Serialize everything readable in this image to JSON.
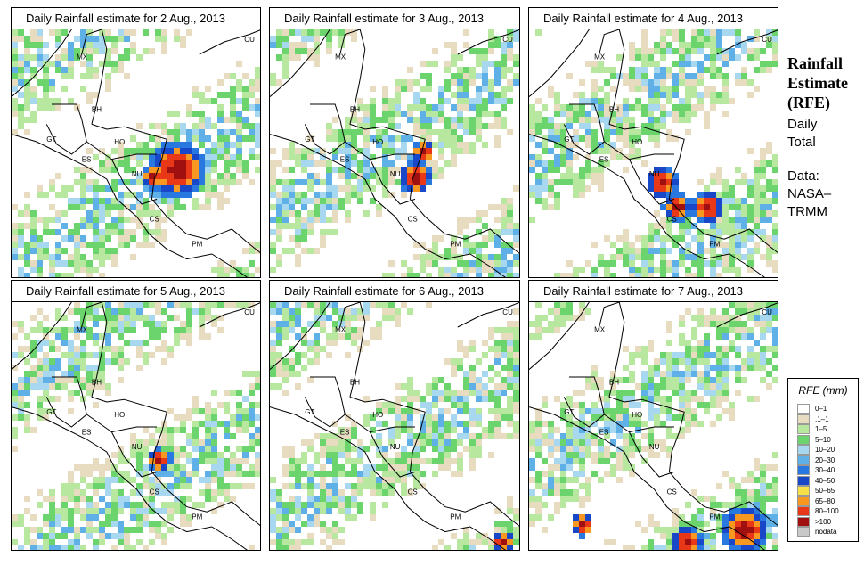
{
  "panels": [
    {
      "title": "Daily Rainfall estimate for  2 Aug., 2013",
      "heavy_spots": [
        [
          0.65,
          0.55,
          0.12
        ],
        [
          0.55,
          0.58,
          0.05
        ]
      ]
    },
    {
      "title": "Daily Rainfall estimate for  3 Aug., 2013",
      "heavy_spots": [
        [
          0.57,
          0.58,
          0.07
        ],
        [
          0.6,
          0.48,
          0.05
        ]
      ]
    },
    {
      "title": "Daily Rainfall estimate for  4 Aug., 2013",
      "heavy_spots": [
        [
          0.52,
          0.6,
          0.07
        ],
        [
          0.7,
          0.7,
          0.07
        ],
        [
          0.58,
          0.7,
          0.06
        ]
      ]
    },
    {
      "title": "Daily Rainfall estimate for  5 Aug., 2013",
      "heavy_spots": [
        [
          0.58,
          0.62,
          0.05
        ]
      ]
    },
    {
      "title": "Daily Rainfall estimate for  6 Aug., 2013",
      "heavy_spots": [
        [
          0.92,
          0.95,
          0.05
        ]
      ]
    },
    {
      "title": "Daily Rainfall estimate for  7 Aug., 2013",
      "heavy_spots": [
        [
          0.85,
          0.9,
          0.1
        ],
        [
          0.62,
          0.95,
          0.07
        ],
        [
          0.2,
          0.88,
          0.05
        ]
      ]
    }
  ],
  "country_labels": [
    "MX",
    "CU",
    "BH",
    "GT",
    "HO",
    "ES",
    "NU",
    "CS",
    "PM"
  ],
  "side": {
    "title_line1": "Rainfall",
    "title_line2": "Estimate",
    "title_line3": "(RFE)",
    "daily_line1": "Daily",
    "daily_line2": "Total",
    "data_line1": "Data:",
    "data_line2": "NASA–",
    "data_line3": "TRMM"
  },
  "legend": {
    "title": "RFE (mm)",
    "items": [
      {
        "label": "0–1",
        "color": "#ffffff"
      },
      {
        "label": ".1–1",
        "color": "#e8dcc0"
      },
      {
        "label": "1–5",
        "color": "#b8e8a0"
      },
      {
        "label": "5–10",
        "color": "#6cd46c"
      },
      {
        "label": "10–20",
        "color": "#a8d8f0"
      },
      {
        "label": "20–30",
        "color": "#60b0e8"
      },
      {
        "label": "30–40",
        "color": "#2878e0"
      },
      {
        "label": "40–50",
        "color": "#1848c8"
      },
      {
        "label": "50–65",
        "color": "#f8e048"
      },
      {
        "label": "65–80",
        "color": "#f89820"
      },
      {
        "label": "80–100",
        "color": "#e83818"
      },
      {
        "label": ">100",
        "color": "#a01010"
      },
      {
        "label": "nodata",
        "color": "#c8c8c8"
      }
    ]
  }
}
